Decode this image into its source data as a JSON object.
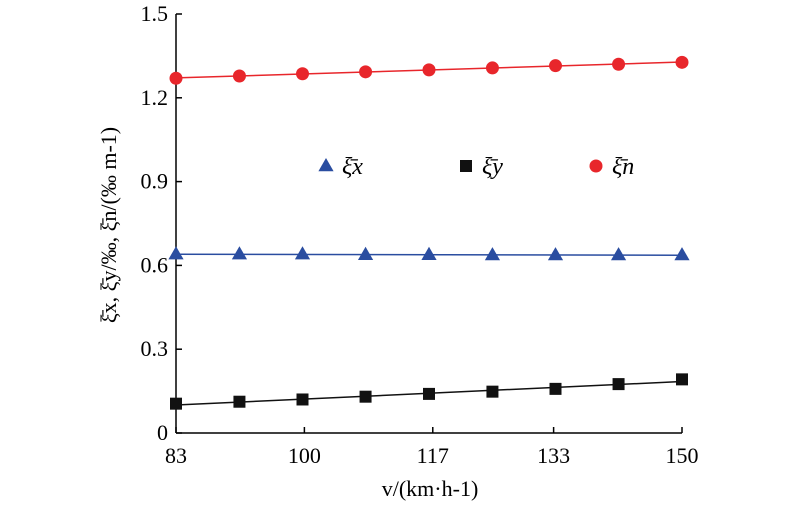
{
  "chart_data": {
    "type": "line",
    "xlabel": "v/(km·h-1)",
    "ylabel": "ξ̄x, ξ̄y/‰, ξ̄n/(‰ m-1)",
    "x_ticks": [
      83,
      100,
      117,
      133,
      150
    ],
    "y_ticks": [
      "0",
      "0.3",
      "0.6",
      "0.9",
      "1.2",
      "1.5"
    ],
    "xlim": [
      83,
      150
    ],
    "ylim": [
      0,
      1.5
    ],
    "grid": false,
    "legend_position": "center",
    "x": [
      83,
      91.4,
      99.75,
      108.1,
      116.5,
      124.9,
      133.25,
      141.6,
      150
    ],
    "series": [
      {
        "name": "ξ̄x",
        "color": "#2a4da0",
        "marker": "triangle",
        "values": [
          0.64,
          0.64,
          0.64,
          0.638,
          0.638,
          0.637,
          0.637,
          0.637,
          0.637
        ]
      },
      {
        "name": "ξ̄y",
        "color": "#111111",
        "marker": "square",
        "values": [
          0.105,
          0.112,
          0.12,
          0.13,
          0.14,
          0.148,
          0.158,
          0.175,
          0.192
        ]
      },
      {
        "name": "ξ̄n",
        "color": "#e8262b",
        "marker": "circle",
        "values": [
          1.27,
          1.278,
          1.286,
          1.293,
          1.3,
          1.307,
          1.315,
          1.32,
          1.327
        ]
      }
    ]
  }
}
